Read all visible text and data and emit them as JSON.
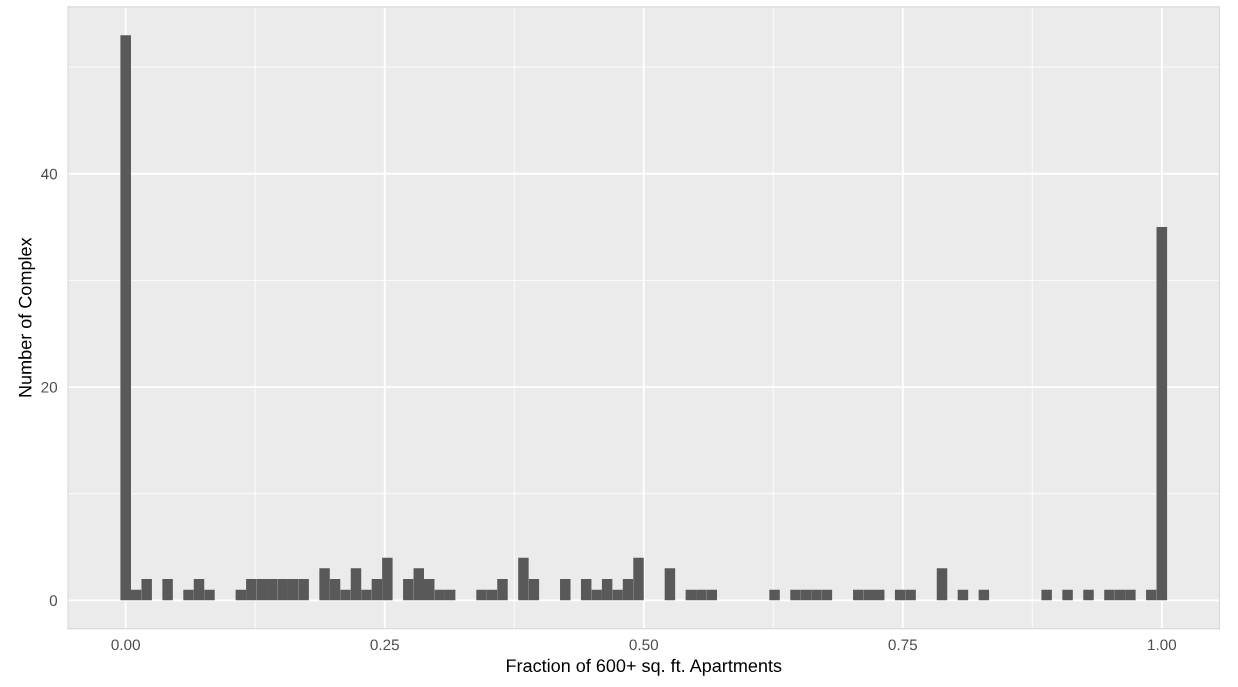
{
  "chart_data": {
    "type": "histogram",
    "xlabel": "Fraction of 600+ sq. ft. Apartments",
    "ylabel": "Number of Complex",
    "bins": [
      -0.0051,
      0.0051,
      0.0152,
      0.0253,
      0.0354,
      0.0455,
      0.0556,
      0.0657,
      0.0758,
      0.0859,
      0.096,
      0.1061,
      0.1162,
      0.1263,
      0.1364,
      0.1465,
      0.1566,
      0.1667,
      0.1768,
      0.1869,
      0.197,
      0.2071,
      0.2172,
      0.2273,
      0.2374,
      0.2475,
      0.2576,
      0.2677,
      0.2778,
      0.2879,
      0.298,
      0.3081,
      0.3182,
      0.3283,
      0.3384,
      0.3485,
      0.3586,
      0.3687,
      0.3788,
      0.3889,
      0.399,
      0.4091,
      0.4192,
      0.4293,
      0.4394,
      0.4495,
      0.4596,
      0.4697,
      0.4798,
      0.4899,
      0.5,
      0.5101,
      0.5202,
      0.5303,
      0.5404,
      0.5505,
      0.5606,
      0.5707,
      0.5808,
      0.5909,
      0.601,
      0.6111,
      0.6212,
      0.6313,
      0.6414,
      0.6515,
      0.6616,
      0.6717,
      0.6818,
      0.6919,
      0.702,
      0.7121,
      0.7222,
      0.7323,
      0.7424,
      0.7525,
      0.7626,
      0.7727,
      0.7828,
      0.7929,
      0.803,
      0.8131,
      0.8232,
      0.8333,
      0.8434,
      0.8535,
      0.8636,
      0.8737,
      0.8838,
      0.8939,
      0.904,
      0.9141,
      0.9242,
      0.9343,
      0.9444,
      0.9545,
      0.9646,
      0.9747,
      0.9848,
      0.9949,
      1.0051
    ],
    "values": [
      53,
      1,
      2,
      0,
      2,
      0,
      1,
      2,
      1,
      0,
      0,
      1,
      2,
      2,
      2,
      2,
      2,
      2,
      0,
      3,
      2,
      1,
      3,
      1,
      2,
      4,
      0,
      2,
      3,
      2,
      1,
      1,
      0,
      0,
      1,
      1,
      2,
      0,
      4,
      2,
      0,
      0,
      2,
      0,
      2,
      1,
      2,
      1,
      2,
      4,
      0,
      0,
      3,
      0,
      1,
      1,
      1,
      0,
      0,
      0,
      0,
      0,
      1,
      0,
      1,
      1,
      1,
      1,
      0,
      0,
      1,
      1,
      1,
      0,
      1,
      1,
      0,
      0,
      3,
      0,
      1,
      0,
      1,
      0,
      0,
      0,
      0,
      0,
      1,
      0,
      1,
      0,
      1,
      0,
      1,
      1,
      1,
      0,
      1,
      35
    ],
    "color": "#595959",
    "xlim": [
      -0.0556,
      1.0556
    ],
    "ylim": [
      -2.65,
      55.65
    ],
    "xticks": [
      {
        "value": 0,
        "label": "0.00"
      },
      {
        "value": 0.25,
        "label": "0.25"
      },
      {
        "value": 0.5,
        "label": "0.50"
      },
      {
        "value": 0.75,
        "label": "0.75"
      },
      {
        "value": 1,
        "label": "1.00"
      }
    ],
    "yticks": [
      0,
      20,
      40
    ],
    "grid": true
  }
}
